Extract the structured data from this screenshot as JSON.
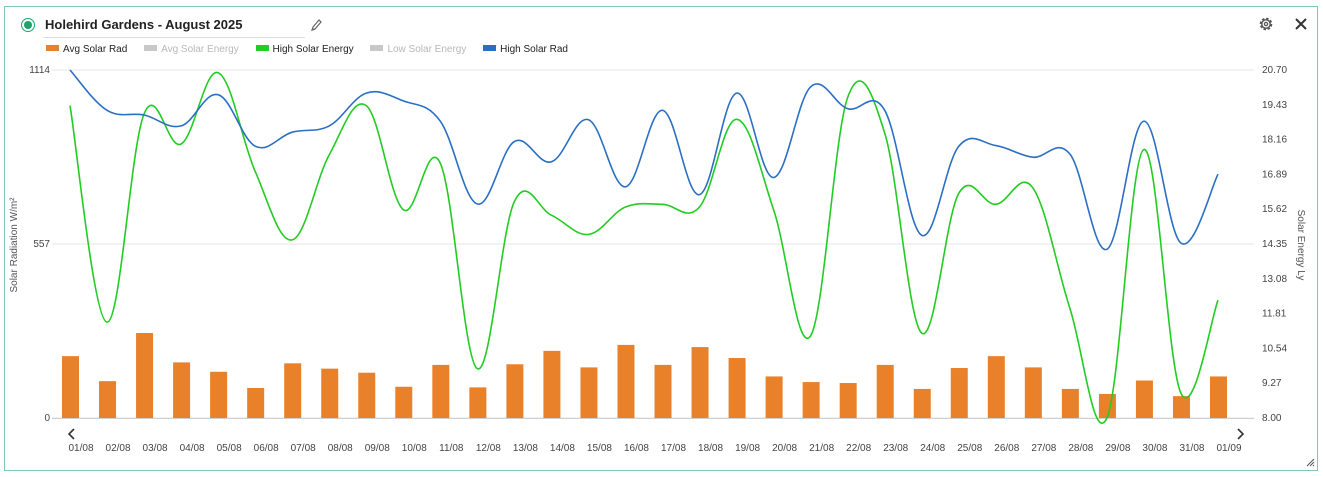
{
  "header": {
    "title": "Holehird Gardens - August 2025"
  },
  "icons": {
    "status": "status-dot-icon",
    "edit": "pencil-icon",
    "settings": "gear-icon",
    "close": "close-icon",
    "prev": "chevron-left-icon",
    "next": "chevron-right-icon",
    "resize": "resize-handle-icon"
  },
  "legend": [
    {
      "label": "Avg Solar Rad",
      "color": "#e8812a",
      "enabled": true
    },
    {
      "label": "Avg Solar Energy",
      "color": "#c8c8c8",
      "enabled": false
    },
    {
      "label": "High Solar Energy",
      "color": "#22cc22",
      "enabled": true
    },
    {
      "label": "Low Solar Energy",
      "color": "#c8c8c8",
      "enabled": false
    },
    {
      "label": "High Solar Rad",
      "color": "#2a6fc4",
      "enabled": true
    }
  ],
  "chart_data": {
    "type": "bar+line",
    "y_left": {
      "label": "Solar Radiation W/m²",
      "ticks": [
        "1114",
        "557",
        "0"
      ],
      "range": [
        0,
        1114
      ]
    },
    "y_right": {
      "label": "Solar Energy Ly",
      "ticks": [
        "20.70",
        "19.43",
        "18.16",
        "16.89",
        "15.62",
        "14.35",
        "13.08",
        "11.81",
        "10.54",
        "9.27",
        "8.00"
      ],
      "range": [
        8.0,
        20.7
      ]
    },
    "x_ticks": [
      "01/08",
      "02/08",
      "03/08",
      "04/08",
      "05/08",
      "06/08",
      "07/08",
      "08/08",
      "09/08",
      "10/08",
      "11/08",
      "12/08",
      "13/08",
      "14/08",
      "15/08",
      "16/08",
      "17/08",
      "18/08",
      "19/08",
      "20/08",
      "21/08",
      "22/08",
      "23/08",
      "24/08",
      "25/08",
      "26/08",
      "27/08",
      "28/08",
      "29/08",
      "30/08",
      "31/08",
      "01/09"
    ],
    "series": [
      {
        "name": "Avg Solar Rad",
        "type": "bar",
        "axis": "left",
        "color": "#e8812a",
        "values": [
          198,
          118,
          272,
          178,
          148,
          96,
          175,
          158,
          145,
          100,
          170,
          98,
          172,
          215,
          162,
          234,
          170,
          227,
          192,
          133,
          115,
          112,
          170,
          93,
          160,
          198,
          162,
          93,
          77,
          120,
          70,
          133
        ]
      },
      {
        "name": "High Solar Energy",
        "type": "line",
        "axis": "right",
        "color": "#22cc22",
        "values": [
          19.4,
          11.5,
          19.1,
          18.0,
          20.6,
          17.0,
          14.5,
          17.6,
          19.4,
          15.6,
          17.3,
          9.8,
          15.9,
          15.4,
          14.7,
          15.7,
          15.8,
          15.7,
          18.9,
          15.6,
          11.0,
          19.7,
          18.4,
          11.1,
          16.2,
          15.8,
          16.4,
          12.0,
          8.0,
          17.8,
          8.9,
          12.3
        ]
      },
      {
        "name": "High Solar Rad",
        "type": "line",
        "axis": "left",
        "color": "#2a6fc4",
        "values": [
          1114,
          985,
          970,
          935,
          1035,
          870,
          915,
          935,
          1040,
          1015,
          950,
          685,
          885,
          820,
          955,
          740,
          985,
          715,
          1040,
          770,
          1060,
          990,
          985,
          585,
          870,
          872,
          835,
          845,
          540,
          950,
          560,
          780
        ]
      }
    ]
  }
}
